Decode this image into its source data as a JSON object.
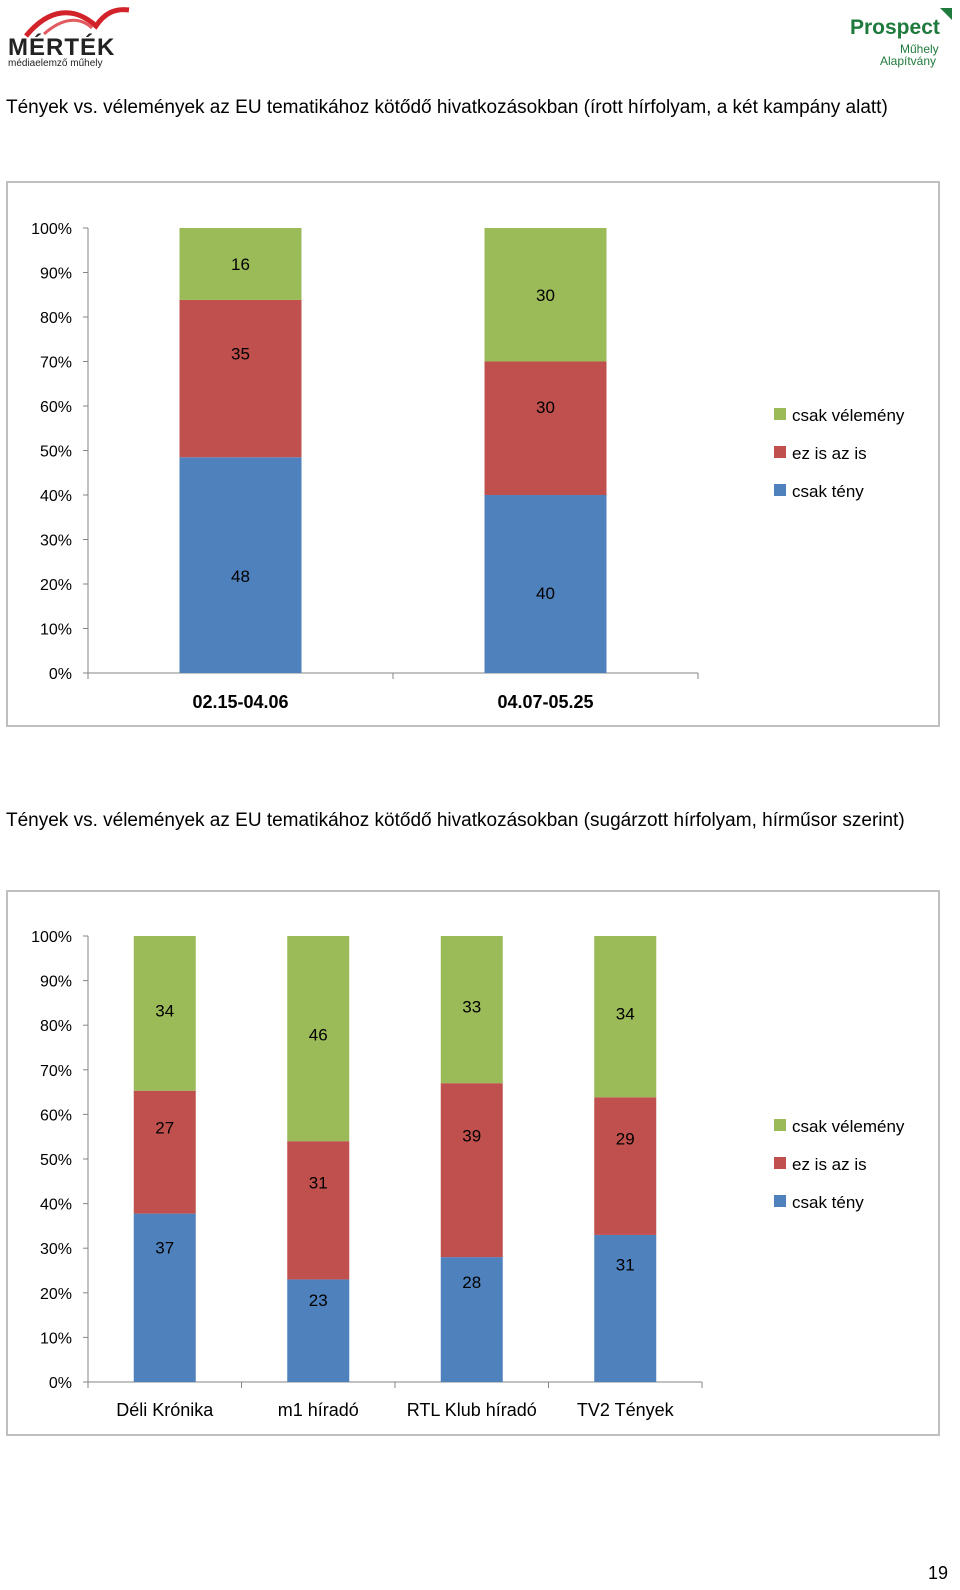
{
  "header": {
    "left_logo": {
      "name": "MÉRTÉK",
      "subtitle": "médiaelemző műhely"
    },
    "right_logo": {
      "name": "Prospect",
      "line2": "Műhely",
      "line3": "Alapítvány"
    }
  },
  "colors": {
    "green": "#9bbb59",
    "red": "#c0504d",
    "blue": "#4f81bd",
    "brand_red": "#d2232a",
    "brand_green": "#1f7a3d"
  },
  "chart_data": [
    {
      "type": "bar",
      "stacked": true,
      "title": "Tények vs. vélemények az EU tematikához kötődő hivatkozásokban (írott hírfolyam, a két kampány alatt)",
      "categories": [
        "02.15-04.06",
        "04.07-05.25"
      ],
      "series": [
        {
          "name": "csak tény",
          "color": "#4f81bd",
          "values": [
            48,
            40
          ]
        },
        {
          "name": "ez is az is",
          "color": "#c0504d",
          "values": [
            35,
            30
          ]
        },
        {
          "name": "csak vélemény",
          "color": "#9bbb59",
          "values": [
            16,
            30
          ]
        }
      ],
      "yticks": [
        "0%",
        "10%",
        "20%",
        "30%",
        "40%",
        "50%",
        "60%",
        "70%",
        "80%",
        "90%",
        "100%"
      ],
      "ylim": [
        0,
        100
      ],
      "legend": [
        "csak vélemény",
        "ez is az is",
        "csak tény"
      ],
      "legend_position": "right"
    },
    {
      "type": "bar",
      "stacked": true,
      "title": "Tények vs. vélemények az EU tematikához kötődő hivatkozásokban (sugárzott hírfolyam, hírműsor szerint)",
      "categories": [
        "Déli Krónika",
        "m1 híradó",
        "RTL Klub híradó",
        "TV2 Tények"
      ],
      "series": [
        {
          "name": "csak tény",
          "color": "#4f81bd",
          "values": [
            37,
            23,
            28,
            31
          ]
        },
        {
          "name": "ez is az is",
          "color": "#c0504d",
          "values": [
            27,
            31,
            39,
            29
          ]
        },
        {
          "name": "csak vélemény",
          "color": "#9bbb59",
          "values": [
            34,
            46,
            33,
            34
          ]
        }
      ],
      "yticks": [
        "0%",
        "10%",
        "20%",
        "30%",
        "40%",
        "50%",
        "60%",
        "70%",
        "80%",
        "90%",
        "100%"
      ],
      "ylim": [
        0,
        100
      ],
      "legend": [
        "csak vélemény",
        "ez is az is",
        "csak tény"
      ],
      "legend_position": "right"
    }
  ],
  "footer": {
    "page_number": "19"
  }
}
